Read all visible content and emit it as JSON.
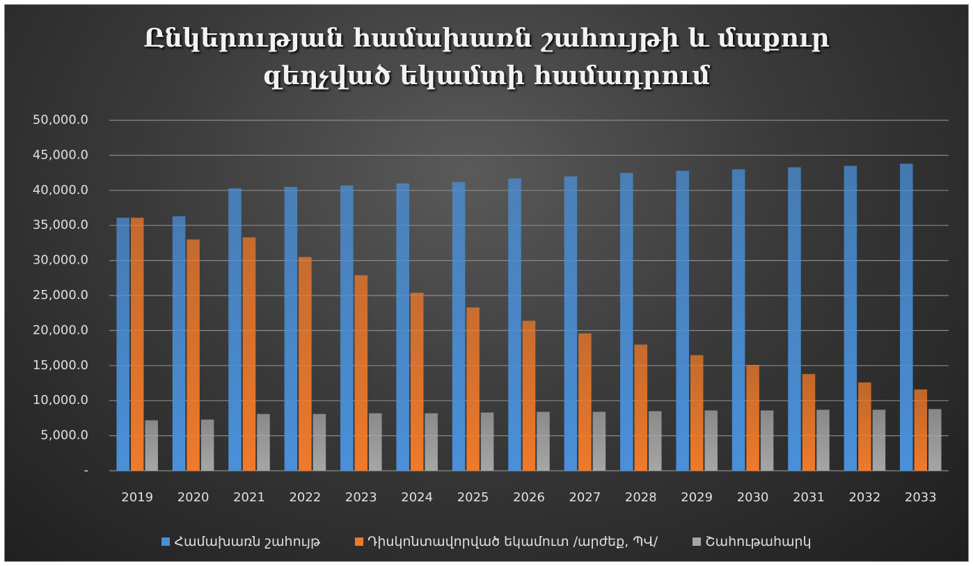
{
  "chart_data": {
    "type": "bar",
    "title": "Ընկերության համախառն շահույթի և մաքուր\nզեղչված եկամտի համադրում",
    "categories": [
      "2019",
      "2020",
      "2021",
      "2022",
      "2023",
      "2024",
      "2025",
      "2026",
      "2027",
      "2028",
      "2029",
      "2030",
      "2031",
      "2032",
      "2033"
    ],
    "series": [
      {
        "name": "Համախառն շահույթ",
        "color": "#4a90d9",
        "values": [
          36100,
          36300,
          40300,
          40500,
          40700,
          41000,
          41200,
          41700,
          42000,
          42500,
          42800,
          43000,
          43300,
          43500,
          43800
        ]
      },
      {
        "name": "Դիսկոնտավորված եկամուտ /արժեք, ՊՎ/",
        "color": "#f07a2a",
        "values": [
          36100,
          33000,
          33300,
          30500,
          27900,
          25400,
          23300,
          21400,
          19600,
          18000,
          16500,
          15100,
          13800,
          12600,
          11600
        ]
      },
      {
        "name": "Շահութահարկ",
        "color": "#a6a6a6",
        "values": [
          7200,
          7300,
          8100,
          8100,
          8200,
          8200,
          8300,
          8400,
          8400,
          8500,
          8600,
          8600,
          8700,
          8700,
          8800
        ]
      }
    ],
    "ylim": [
      0,
      50000
    ],
    "yticks": [
      {
        "value": 0,
        "label": "-"
      },
      {
        "value": 5000,
        "label": "5,000.0"
      },
      {
        "value": 10000,
        "label": "10,000.0"
      },
      {
        "value": 15000,
        "label": "15,000.0"
      },
      {
        "value": 20000,
        "label": "20,000.0"
      },
      {
        "value": 25000,
        "label": "25,000.0"
      },
      {
        "value": 30000,
        "label": "30,000.0"
      },
      {
        "value": 35000,
        "label": "35,000.0"
      },
      {
        "value": 40000,
        "label": "40,000.0"
      },
      {
        "value": 45000,
        "label": "45,000.0"
      },
      {
        "value": 50000,
        "label": "50,000.0"
      }
    ],
    "grid": true,
    "legend": "bottom"
  }
}
